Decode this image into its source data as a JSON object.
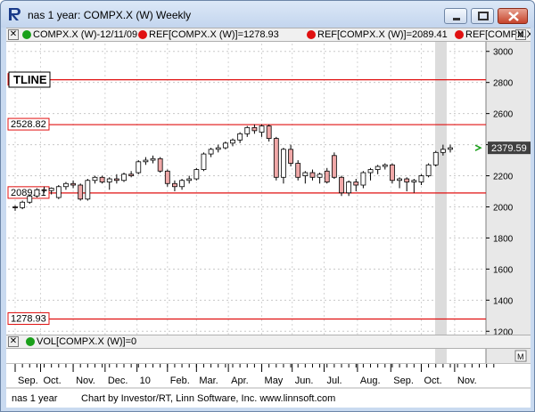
{
  "window": {
    "title": "nas 1 year: COMPX.X (W) Weekly"
  },
  "price_panel": {
    "legend": [
      {
        "text": "COMPX.X (W)-12/11/09",
        "dot_color": "#1aa01a"
      },
      {
        "text": "REF[COMPX.X (W)]=1278.93",
        "dot_color": "#e01010"
      },
      {
        "text": "REF[COMPX.X (W)]=2089.41",
        "dot_color": "#e01010"
      },
      {
        "text": "REF[COMPX.X (W)]",
        "dot_color": "#e01010"
      }
    ],
    "tline_label": "TLINE",
    "last_price": "2379.59",
    "m_button": "M"
  },
  "volume_panel": {
    "legend": {
      "text": "VOL[COMPX.X (W)]=0",
      "dot_color": "#1aa01a"
    },
    "m_button": "M"
  },
  "footer": {
    "left": "nas 1 year",
    "credit": "Chart by Investor/RT, Linn Software, Inc. www.linnsoft.com"
  },
  "colors": {
    "ref_line": "#e01010",
    "down_candle": "#f0a8a8",
    "up_candle": "#ffffff",
    "axis_bg": "#e8e8e8"
  },
  "chart_data": {
    "type": "candlestick",
    "title": "COMPX.X (W)",
    "ylim": [
      1150,
      3050
    ],
    "y_ticks": [
      1200,
      1400,
      1600,
      1800,
      2000,
      2200,
      2400,
      2600,
      2800,
      3000
    ],
    "x_tick_labels": [
      "Sep.",
      "Oct.",
      "Nov.",
      "Dec.",
      "10",
      "Feb.",
      "Mar.",
      "Apr.",
      "May",
      "Jun.",
      "Jul.",
      "Aug.",
      "Sep.",
      "Oct.",
      "Nov."
    ],
    "reference_lines": [
      {
        "label": "2817.35",
        "value": 2817.35
      },
      {
        "label": "2528.82",
        "value": 2528.82
      },
      {
        "label": "2089.41",
        "value": 2089.41
      },
      {
        "label": "1278.93",
        "value": 1278.93
      }
    ],
    "candles": [
      [
        2000,
        2010,
        1975,
        1995
      ],
      [
        1995,
        2040,
        1985,
        2030
      ],
      [
        2030,
        2080,
        2020,
        2070
      ],
      [
        2070,
        2120,
        2060,
        2110
      ],
      [
        2110,
        2130,
        2090,
        2105
      ],
      [
        2105,
        2125,
        2080,
        2120
      ],
      [
        2060,
        2140,
        2050,
        2130
      ],
      [
        2130,
        2160,
        2110,
        2150
      ],
      [
        2150,
        2170,
        2120,
        2140
      ],
      [
        2140,
        2150,
        2040,
        2050
      ],
      [
        2050,
        2180,
        2040,
        2170
      ],
      [
        2170,
        2200,
        2150,
        2190
      ],
      [
        2190,
        2200,
        2150,
        2160
      ],
      [
        2160,
        2190,
        2110,
        2180
      ],
      [
        2180,
        2210,
        2150,
        2170
      ],
      [
        2170,
        2220,
        2160,
        2210
      ],
      [
        2210,
        2230,
        2190,
        2200
      ],
      [
        2220,
        2300,
        2210,
        2290
      ],
      [
        2290,
        2320,
        2270,
        2300
      ],
      [
        2300,
        2330,
        2280,
        2310
      ],
      [
        2310,
        2320,
        2220,
        2230
      ],
      [
        2230,
        2240,
        2130,
        2150
      ],
      [
        2150,
        2170,
        2100,
        2130
      ],
      [
        2130,
        2180,
        2110,
        2170
      ],
      [
        2170,
        2200,
        2150,
        2180
      ],
      [
        2180,
        2250,
        2170,
        2240
      ],
      [
        2240,
        2350,
        2230,
        2340
      ],
      [
        2340,
        2380,
        2320,
        2370
      ],
      [
        2370,
        2400,
        2350,
        2380
      ],
      [
        2380,
        2420,
        2370,
        2410
      ],
      [
        2410,
        2440,
        2390,
        2430
      ],
      [
        2430,
        2480,
        2410,
        2470
      ],
      [
        2470,
        2520,
        2450,
        2510
      ],
      [
        2510,
        2530,
        2470,
        2490
      ],
      [
        2480,
        2530,
        2450,
        2520
      ],
      [
        2520,
        2530,
        2420,
        2440
      ],
      [
        2440,
        2450,
        2170,
        2190
      ],
      [
        2190,
        2380,
        2150,
        2370
      ],
      [
        2370,
        2400,
        2260,
        2280
      ],
      [
        2280,
        2300,
        2170,
        2190
      ],
      [
        2200,
        2230,
        2150,
        2220
      ],
      [
        2220,
        2240,
        2170,
        2190
      ],
      [
        2190,
        2220,
        2150,
        2210
      ],
      [
        2230,
        2250,
        2150,
        2160
      ],
      [
        2330,
        2350,
        2180,
        2190
      ],
      [
        2190,
        2200,
        2070,
        2090
      ],
      [
        2090,
        2170,
        2070,
        2160
      ],
      [
        2160,
        2180,
        2100,
        2140
      ],
      [
        2140,
        2230,
        2120,
        2220
      ],
      [
        2220,
        2250,
        2170,
        2240
      ],
      [
        2240,
        2270,
        2210,
        2260
      ],
      [
        2260,
        2280,
        2240,
        2270
      ],
      [
        2270,
        2280,
        2150,
        2170
      ],
      [
        2170,
        2190,
        2120,
        2180
      ],
      [
        2180,
        2190,
        2100,
        2160
      ],
      [
        2160,
        2180,
        2090,
        2170
      ],
      [
        2160,
        2210,
        2140,
        2200
      ],
      [
        2200,
        2280,
        2190,
        2270
      ],
      [
        2270,
        2360,
        2260,
        2350
      ],
      [
        2350,
        2400,
        2330,
        2370
      ],
      [
        2370,
        2400,
        2350,
        2380
      ]
    ],
    "candle_format": [
      "open",
      "high",
      "low",
      "close"
    ]
  }
}
